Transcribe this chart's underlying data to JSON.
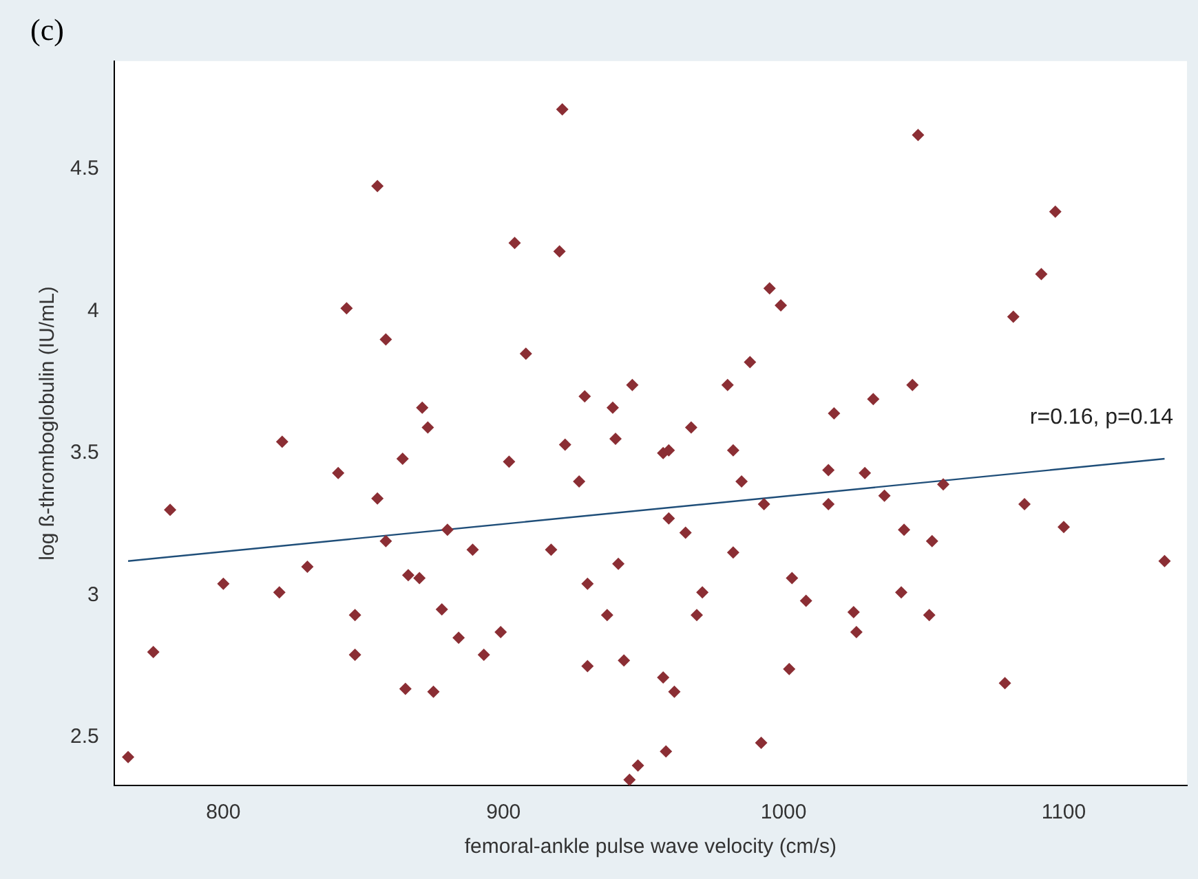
{
  "chart_data": {
    "type": "scatter",
    "title": "(c)",
    "xlabel": "femoral-ankle pulse wave velocity (cm/s)",
    "ylabel": "log ß-thromboglobulin (IU/mL)",
    "xlim": [
      761,
      1144
    ],
    "ylim": [
      2.33,
      4.88
    ],
    "xticks": [
      800,
      900,
      1000,
      1100
    ],
    "yticks": [
      2.5,
      3,
      3.5,
      4,
      4.5
    ],
    "grid": false,
    "legend": false,
    "marker": "diamond",
    "annotations": [
      "r=0.16, p=0.14"
    ],
    "series": [
      {
        "color": "#8b2e34",
        "x": [
          766,
          775,
          781,
          800,
          820,
          821,
          830,
          841,
          844,
          847,
          847,
          855,
          855,
          858,
          858,
          864,
          865,
          866,
          870,
          871,
          873,
          875,
          878,
          880,
          884,
          889,
          893,
          899,
          902,
          904,
          908,
          917,
          920,
          921,
          922,
          927,
          929,
          930,
          930,
          937,
          939,
          940,
          941,
          943,
          945,
          946,
          948,
          957,
          959,
          957,
          958,
          959,
          961,
          965,
          967,
          969,
          971,
          980,
          982,
          982,
          985,
          988,
          992,
          993,
          995,
          999,
          1002,
          1003,
          1008,
          1016,
          1016,
          1018,
          1025,
          1026,
          1029,
          1032,
          1036,
          1042,
          1043,
          1046,
          1048,
          1052,
          1053,
          1057,
          1079,
          1082,
          1086,
          1092,
          1097,
          1100,
          1136
        ],
        "values": [
          2.43,
          2.8,
          3.3,
          3.04,
          3.01,
          3.54,
          3.1,
          3.43,
          4.01,
          2.93,
          2.79,
          4.44,
          3.34,
          3.9,
          3.19,
          3.48,
          2.67,
          3.07,
          3.06,
          3.66,
          3.59,
          2.66,
          2.95,
          3.23,
          2.85,
          3.16,
          2.79,
          2.87,
          3.47,
          4.24,
          3.85,
          3.16,
          4.21,
          4.71,
          3.53,
          3.4,
          3.7,
          3.04,
          2.75,
          2.93,
          3.66,
          3.55,
          3.11,
          2.77,
          2.35,
          3.74,
          2.4,
          3.5,
          3.51,
          2.71,
          2.45,
          3.27,
          2.66,
          3.22,
          3.59,
          2.93,
          3.01,
          3.74,
          3.51,
          3.15,
          3.4,
          3.82,
          2.48,
          3.32,
          4.08,
          4.02,
          2.74,
          3.06,
          2.98,
          3.44,
          3.32,
          3.64,
          2.94,
          2.87,
          3.43,
          3.69,
          3.35,
          3.01,
          3.23,
          3.74,
          4.62,
          2.93,
          3.19,
          3.39,
          2.69,
          3.98,
          3.32,
          4.13,
          4.35,
          3.24,
          3.12
        ]
      },
      {
        "type": "line",
        "color": "#1f4e79",
        "marker": "none",
        "x": [
          766,
          1136
        ],
        "values": [
          3.12,
          3.48
        ]
      }
    ]
  }
}
